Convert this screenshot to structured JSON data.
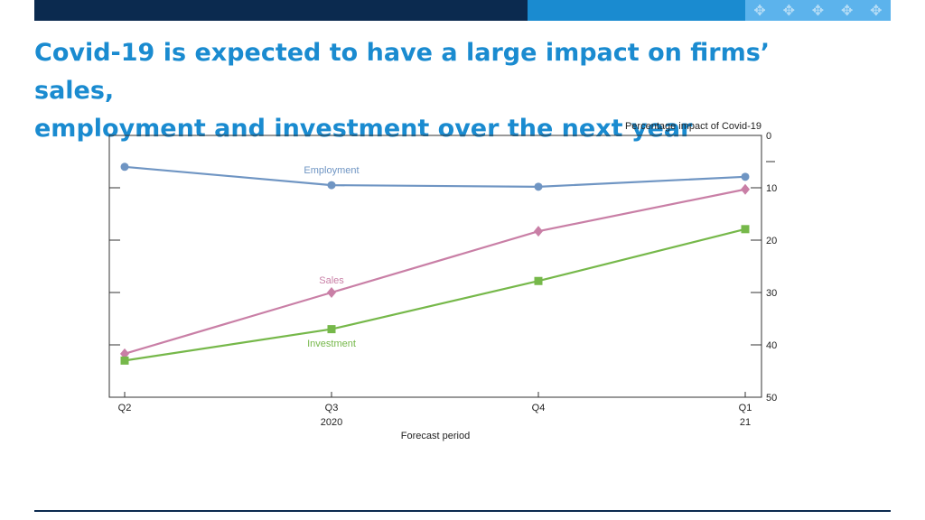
{
  "header": {
    "title_line1": "Covid-19 is expected to have a large impact on firms’ sales,",
    "title_line2": "employment and investment over the next year",
    "decoration_icon": "cross-pattern-icon",
    "colors": {
      "dark_band": "#0b2a4f",
      "mid_band": "#1a8bd0",
      "light_band": "#5cb3ec",
      "title": "#1a8bd0"
    }
  },
  "chart_data": {
    "type": "line",
    "title": "",
    "ylabel": "Percentage impact of Covid-19",
    "xlabel": "Forecast period",
    "categories": [
      "Q2",
      "Q3",
      "Q4",
      "Q1"
    ],
    "year_labels": [
      {
        "category_index": 1,
        "label": "2020"
      },
      {
        "category_index": 3,
        "label": "21"
      }
    ],
    "y_inverted": true,
    "ylim": [
      0,
      50
    ],
    "y_ticks": [
      0,
      10,
      20,
      30,
      40,
      50
    ],
    "y_tick_labels": [
      "0",
      "10",
      "20",
      "30",
      "40",
      "50"
    ],
    "y_axis_side": "right",
    "grid": false,
    "legend": "inline labels",
    "series": [
      {
        "name": "Employment",
        "values": [
          -6,
          -9.5,
          -9.8,
          -7.9
        ],
        "color": "#6f95c3",
        "marker": "circle"
      },
      {
        "name": "Sales",
        "values": [
          -41.7,
          -30,
          -18.3,
          -10.3
        ],
        "color": "#c97fa6",
        "marker": "diamond"
      },
      {
        "name": "Investment",
        "values": [
          -43,
          -37,
          -27.8,
          -17.9
        ],
        "color": "#76b84a",
        "marker": "square"
      }
    ]
  }
}
